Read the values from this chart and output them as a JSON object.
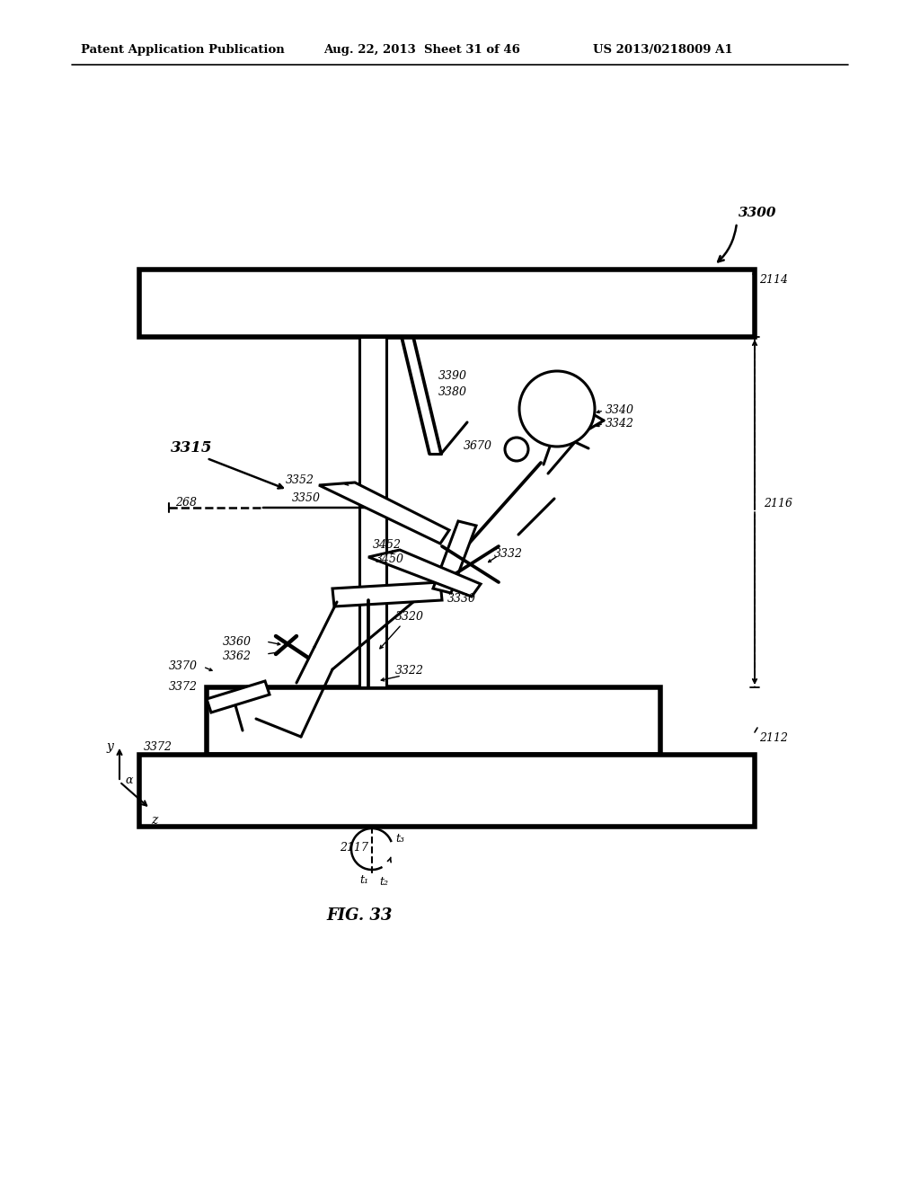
{
  "bg_color": "#ffffff",
  "line_color": "#000000",
  "header_left": "Patent Application Publication",
  "header_mid": "Aug. 22, 2013  Sheet 31 of 46",
  "header_right": "US 2013/0218009 A1",
  "fig_label": "FIG. 33",
  "ref_3300": "3300",
  "ref_2114": "2114",
  "ref_2116": "2116",
  "ref_2112": "2112",
  "ref_3315": "3315",
  "ref_268": "268",
  "ref_3390": "3390",
  "ref_3380": "3380",
  "ref_3670": "3670",
  "ref_3350": "3350",
  "ref_3352": "3352",
  "ref_3450": "3450",
  "ref_3452": "3452",
  "ref_3330": "3330",
  "ref_3332": "3332",
  "ref_3340": "3340",
  "ref_3342": "3342",
  "ref_3320": "3320",
  "ref_3322": "3322",
  "ref_3360": "3360",
  "ref_3362": "3362",
  "ref_3370": "3370",
  "ref_3372": "3372",
  "ref_2117": "2117",
  "ref_t1": "t₁",
  "ref_t2": "t₂",
  "ref_t3": "t₃"
}
